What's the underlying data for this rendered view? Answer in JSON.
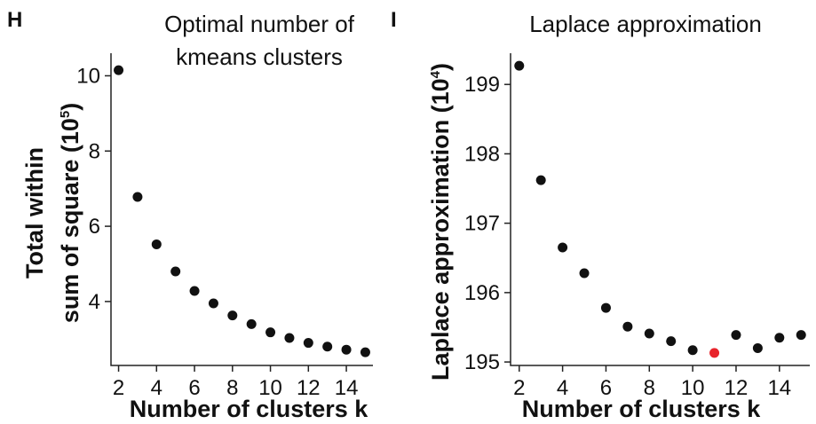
{
  "chart_data": [
    {
      "type": "scatter",
      "panel": "H",
      "title_lines": [
        "Optimal number of",
        "kmeans clusters"
      ],
      "xlabel": "Number of clusters k",
      "ylabel_lines": [
        "Total within",
        "sum of square (10",
        "5",
        ")"
      ],
      "xlim": [
        1.6,
        15.4
      ],
      "ylim": [
        2.3,
        10.6
      ],
      "x_ticks": [
        2,
        4,
        6,
        8,
        10,
        12,
        14
      ],
      "x_tick_labels": [
        "2",
        "4",
        "6",
        "8",
        "10",
        "12",
        "14"
      ],
      "y_ticks": [
        4,
        6,
        8,
        10
      ],
      "y_tick_labels": [
        "4",
        "6",
        "8",
        "10"
      ],
      "point_color": "#111111",
      "points": [
        {
          "x": 2,
          "y": 10.15
        },
        {
          "x": 3,
          "y": 6.78
        },
        {
          "x": 4,
          "y": 5.52
        },
        {
          "x": 5,
          "y": 4.8
        },
        {
          "x": 6,
          "y": 4.28
        },
        {
          "x": 7,
          "y": 3.95
        },
        {
          "x": 8,
          "y": 3.63
        },
        {
          "x": 9,
          "y": 3.4
        },
        {
          "x": 10,
          "y": 3.18
        },
        {
          "x": 11,
          "y": 3.03
        },
        {
          "x": 12,
          "y": 2.9
        },
        {
          "x": 13,
          "y": 2.8
        },
        {
          "x": 14,
          "y": 2.72
        },
        {
          "x": 15,
          "y": 2.65
        }
      ]
    },
    {
      "type": "scatter",
      "panel": "I",
      "title_lines": [
        "Laplace approximation"
      ],
      "xlabel": "Number of clusters k",
      "ylabel_lines": [
        "Laplace approximation (10",
        "4",
        ")"
      ],
      "xlim": [
        1.6,
        15.4
      ],
      "ylim": [
        194.95,
        199.45
      ],
      "x_ticks": [
        2,
        4,
        6,
        8,
        10,
        12,
        14
      ],
      "x_tick_labels": [
        "2",
        "4",
        "6",
        "8",
        "10",
        "12",
        "14"
      ],
      "y_ticks": [
        195,
        196,
        197,
        198,
        199
      ],
      "y_tick_labels": [
        "195",
        "196",
        "197",
        "198",
        "199"
      ],
      "point_color": "#111111",
      "highlight_color": "#e8232b",
      "points": [
        {
          "x": 2,
          "y": 199.27
        },
        {
          "x": 3,
          "y": 197.62
        },
        {
          "x": 4,
          "y": 196.65
        },
        {
          "x": 5,
          "y": 196.28
        },
        {
          "x": 6,
          "y": 195.78
        },
        {
          "x": 7,
          "y": 195.51
        },
        {
          "x": 8,
          "y": 195.41
        },
        {
          "x": 9,
          "y": 195.3
        },
        {
          "x": 10,
          "y": 195.17
        },
        {
          "x": 11,
          "y": 195.13,
          "highlight": true
        },
        {
          "x": 12,
          "y": 195.39
        },
        {
          "x": 13,
          "y": 195.2
        },
        {
          "x": 14,
          "y": 195.35
        },
        {
          "x": 15,
          "y": 195.39
        }
      ]
    }
  ]
}
